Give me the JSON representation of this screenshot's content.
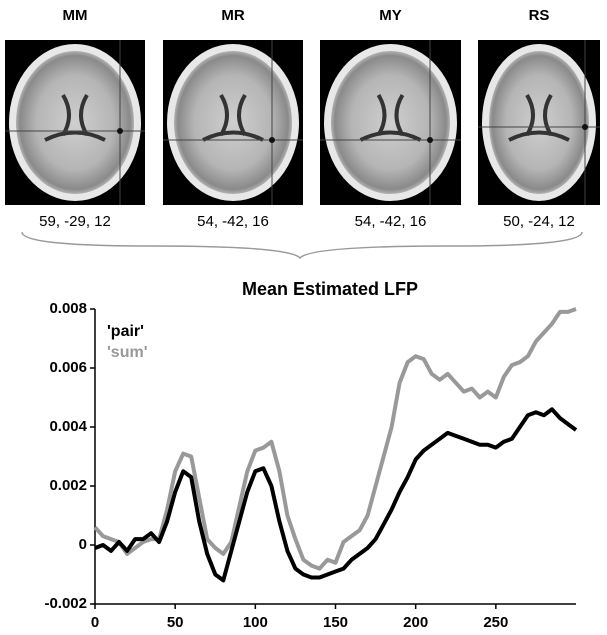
{
  "brains": [
    {
      "label": "MM",
      "coords": "59, -29, 12"
    },
    {
      "label": "MR",
      "coords": "54, -42, 16"
    },
    {
      "label": "MY",
      "coords": "54, -42, 16"
    },
    {
      "label": "RS",
      "coords": "50, -24, 12"
    }
  ],
  "chart_data": {
    "type": "line",
    "title": "Mean Estimated LFP",
    "x": [
      0,
      5,
      10,
      15,
      20,
      25,
      30,
      35,
      40,
      45,
      50,
      55,
      60,
      65,
      70,
      75,
      80,
      85,
      90,
      95,
      100,
      105,
      110,
      115,
      120,
      125,
      130,
      135,
      140,
      145,
      150,
      155,
      160,
      165,
      170,
      175,
      180,
      185,
      190,
      195,
      200,
      205,
      210,
      215,
      220,
      225,
      230,
      235,
      240,
      245,
      250,
      255,
      260,
      265,
      270,
      275,
      280,
      285,
      290,
      295,
      300
    ],
    "series": [
      {
        "name": "'pair'",
        "color": "#000000",
        "values": [
          -0.0001,
          0.0,
          -0.0002,
          0.0001,
          -0.0002,
          0.0002,
          0.0002,
          0.0004,
          0.0001,
          0.0008,
          0.0018,
          0.0025,
          0.0023,
          0.0008,
          -0.0003,
          -0.001,
          -0.0012,
          -0.0002,
          0.0008,
          0.0018,
          0.0025,
          0.0026,
          0.002,
          0.0008,
          -0.0002,
          -0.0008,
          -0.001,
          -0.0011,
          -0.0011,
          -0.001,
          -0.0009,
          -0.0008,
          -0.0005,
          -0.0003,
          -0.0001,
          0.0002,
          0.0007,
          0.0012,
          0.0018,
          0.0023,
          0.0029,
          0.0032,
          0.0034,
          0.0036,
          0.0038,
          0.0037,
          0.0036,
          0.0035,
          0.0034,
          0.0034,
          0.0033,
          0.0035,
          0.0036,
          0.004,
          0.0044,
          0.0045,
          0.0044,
          0.0046,
          0.0043,
          0.0041,
          0.0039
        ]
      },
      {
        "name": "'sum'",
        "color": "#999999",
        "values": [
          0.0006,
          0.0003,
          0.0002,
          0.0001,
          -0.0003,
          -0.0001,
          0.0001,
          0.0002,
          0.0002,
          0.0012,
          0.0025,
          0.0031,
          0.003,
          0.0016,
          0.0002,
          -0.0001,
          -0.0003,
          0.0001,
          0.0013,
          0.0025,
          0.0032,
          0.0033,
          0.0035,
          0.0025,
          0.001,
          0.0002,
          -0.0005,
          -0.0007,
          -0.0008,
          -0.0005,
          -0.0006,
          0.0001,
          0.0003,
          0.0005,
          0.001,
          0.002,
          0.003,
          0.004,
          0.0055,
          0.0062,
          0.0064,
          0.0063,
          0.0058,
          0.0056,
          0.0058,
          0.0055,
          0.0052,
          0.0053,
          0.005,
          0.0052,
          0.005,
          0.0057,
          0.0061,
          0.0062,
          0.0064,
          0.0069,
          0.0072,
          0.0075,
          0.0079,
          0.0079,
          0.008
        ]
      }
    ],
    "xlim": [
      0,
      300
    ],
    "xticks": [
      0,
      50,
      100,
      150,
      200,
      250
    ],
    "ylim": [
      -0.002,
      0.008
    ],
    "yticks": [
      -0.002,
      0,
      0.002,
      0.004,
      0.006,
      0.008
    ],
    "grid": false,
    "legend": "top-left"
  }
}
